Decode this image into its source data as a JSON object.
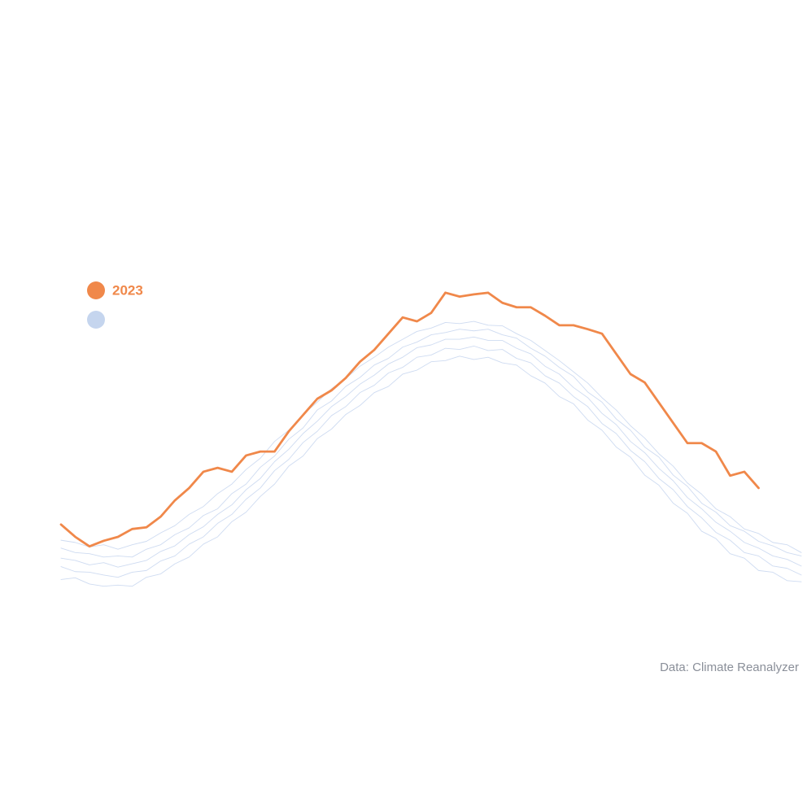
{
  "chart_data": {
    "type": "line",
    "source": "Data: Climate Reanalyzer",
    "xlim": [
      1,
      365
    ],
    "ylim": [
      19,
      26
    ],
    "x": [
      1,
      8,
      15,
      22,
      29,
      36,
      43,
      50,
      57,
      64,
      71,
      78,
      85,
      92,
      99,
      106,
      113,
      120,
      127,
      134,
      141,
      148,
      155,
      162,
      169,
      176,
      183,
      190,
      197,
      204,
      211,
      218,
      225,
      232,
      239,
      246,
      253,
      260,
      267,
      274,
      281,
      288,
      295,
      302,
      309,
      316,
      323,
      330,
      337,
      344,
      351,
      358,
      365
    ],
    "series": [
      {
        "color": "#c5d5ee",
        "values": [
          19.82,
          19.85,
          19.74,
          19.7,
          19.72,
          19.7,
          19.86,
          19.92,
          20.1,
          20.22,
          20.45,
          20.58,
          20.85,
          21.02,
          21.3,
          21.52,
          21.84,
          22.02,
          22.33,
          22.5,
          22.76,
          22.92,
          23.15,
          23.26,
          23.48,
          23.55,
          23.7,
          23.72,
          23.8,
          23.74,
          23.78,
          23.68,
          23.64,
          23.45,
          23.32,
          23.08,
          22.95,
          22.66,
          22.48,
          22.18,
          22.0,
          21.68,
          21.5,
          21.18,
          21.0,
          20.68,
          20.55,
          20.28,
          20.2,
          19.98,
          19.95,
          19.8,
          19.78
        ]
      },
      {
        "color": "#c5d5ee",
        "values": [
          20.05,
          19.96,
          19.95,
          19.9,
          19.86,
          19.95,
          19.98,
          20.15,
          20.24,
          20.45,
          20.58,
          20.82,
          20.98,
          21.25,
          21.45,
          21.76,
          21.96,
          22.26,
          22.46,
          22.74,
          22.9,
          23.15,
          23.28,
          23.5,
          23.6,
          23.78,
          23.82,
          23.94,
          23.92,
          23.98,
          23.9,
          23.92,
          23.76,
          23.68,
          23.45,
          23.32,
          23.08,
          22.9,
          22.6,
          22.42,
          22.12,
          21.92,
          21.62,
          21.42,
          21.12,
          20.92,
          20.66,
          20.52,
          20.3,
          20.24,
          20.06,
          20.02,
          19.9
        ]
      },
      {
        "color": "#c5d5ee",
        "values": [
          20.2,
          20.16,
          20.08,
          20.12,
          20.04,
          20.1,
          20.16,
          20.32,
          20.42,
          20.62,
          20.76,
          20.98,
          21.15,
          21.42,
          21.62,
          21.92,
          22.14,
          22.42,
          22.64,
          22.9,
          23.08,
          23.3,
          23.46,
          23.66,
          23.78,
          23.95,
          24.0,
          24.1,
          24.1,
          24.14,
          24.08,
          24.08,
          23.94,
          23.84,
          23.62,
          23.48,
          23.24,
          23.06,
          22.78,
          22.58,
          22.28,
          22.08,
          21.8,
          21.58,
          21.28,
          21.08,
          20.84,
          20.68,
          20.48,
          20.38,
          20.24,
          20.18,
          20.06
        ]
      },
      {
        "color": "#c5d5ee",
        "values": [
          20.38,
          20.3,
          20.28,
          20.22,
          20.24,
          20.22,
          20.36,
          20.44,
          20.62,
          20.74,
          20.96,
          21.08,
          21.35,
          21.52,
          21.82,
          22.02,
          22.32,
          22.52,
          22.84,
          23.0,
          23.26,
          23.42,
          23.64,
          23.76,
          23.96,
          24.05,
          24.18,
          24.22,
          24.28,
          24.25,
          24.28,
          24.18,
          24.12,
          23.94,
          23.8,
          23.6,
          23.44,
          23.16,
          22.98,
          22.68,
          22.48,
          22.18,
          22.0,
          21.68,
          21.48,
          21.18,
          21.02,
          20.78,
          20.68,
          20.5,
          20.42,
          20.3,
          20.24
        ]
      },
      {
        "color": "#c5d5ee",
        "values": [
          20.52,
          20.48,
          20.4,
          20.44,
          20.36,
          20.44,
          20.5,
          20.65,
          20.78,
          20.98,
          21.12,
          21.35,
          21.52,
          21.78,
          21.98,
          22.28,
          22.48,
          22.76,
          22.98,
          23.22,
          23.4,
          23.62,
          23.78,
          23.96,
          24.1,
          24.24,
          24.3,
          24.4,
          24.38,
          24.42,
          24.35,
          24.34,
          24.2,
          24.08,
          23.9,
          23.72,
          23.52,
          23.32,
          23.06,
          22.84,
          22.56,
          22.34,
          22.06,
          21.84,
          21.54,
          21.34,
          21.08,
          20.94,
          20.72,
          20.64,
          20.48,
          20.44,
          20.3
        ]
      },
      {
        "name": "2023",
        "color": "#f0884a",
        "values": [
          20.8,
          20.58,
          20.41,
          20.51,
          20.58,
          20.72,
          20.75,
          20.94,
          21.23,
          21.45,
          21.74,
          21.81,
          21.74,
          22.03,
          22.1,
          22.1,
          22.46,
          22.75,
          23.04,
          23.19,
          23.41,
          23.7,
          23.91,
          24.2,
          24.49,
          24.42,
          24.57,
          24.93,
          24.86,
          24.9,
          24.93,
          24.75,
          24.67,
          24.67,
          24.52,
          24.35,
          24.35,
          24.28,
          24.2,
          23.84,
          23.48,
          23.33,
          22.97,
          22.61,
          22.25,
          22.25,
          22.1,
          21.67,
          21.74,
          21.45,
          null,
          null,
          null
        ]
      }
    ]
  }
}
